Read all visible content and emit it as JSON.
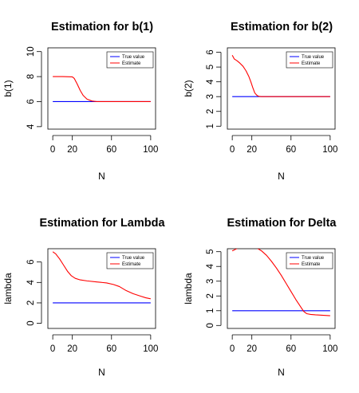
{
  "colors": {
    "true_value": "#0000ff",
    "estimate": "#ff0000"
  },
  "chart_data": [
    {
      "type": "line",
      "title": "Estimation for b(1)",
      "xlabel": "N",
      "ylabel": "b(1)",
      "xlim": [
        -5,
        105
      ],
      "ylim": [
        3.8,
        10.3
      ],
      "xticks": [
        0,
        20,
        60,
        100
      ],
      "yticks": [
        4,
        6,
        8,
        10
      ],
      "legend": {
        "position": "top-right",
        "entries": [
          "True value",
          "Estimate"
        ]
      },
      "series": [
        {
          "name": "True value",
          "color": "#0000ff",
          "x": [
            0,
            100
          ],
          "y": [
            6,
            6
          ]
        },
        {
          "name": "Estimate",
          "color": "#ff0000",
          "x": [
            0,
            10,
            20,
            22,
            25,
            28,
            31,
            35,
            40,
            45,
            50,
            60,
            70,
            80,
            90,
            100
          ],
          "y": [
            8,
            8,
            7.98,
            7.85,
            7.4,
            6.9,
            6.5,
            6.2,
            6.05,
            6.0,
            6.0,
            6.0,
            6.0,
            6.0,
            6.0,
            6.0
          ]
        }
      ]
    },
    {
      "type": "line",
      "title": "Estimation for b(2)",
      "xlabel": "N",
      "ylabel": "b(2)",
      "xlim": [
        -5,
        105
      ],
      "ylim": [
        0.8,
        6.3
      ],
      "xticks": [
        0,
        20,
        60,
        100
      ],
      "yticks": [
        1,
        2,
        3,
        4,
        5,
        6
      ],
      "legend": {
        "position": "top-right",
        "entries": [
          "True value",
          "Estimate"
        ]
      },
      "series": [
        {
          "name": "True value",
          "color": "#0000ff",
          "x": [
            0,
            100
          ],
          "y": [
            3,
            3
          ]
        },
        {
          "name": "Estimate",
          "color": "#ff0000",
          "x": [
            0,
            2,
            5,
            8,
            11,
            14,
            17,
            19,
            21,
            23,
            25,
            27,
            30,
            35,
            40,
            60,
            100
          ],
          "y": [
            5.8,
            5.55,
            5.42,
            5.25,
            5.05,
            4.75,
            4.35,
            4.0,
            3.6,
            3.25,
            3.1,
            3.02,
            3.0,
            3.0,
            3.0,
            3.0,
            3.0
          ]
        }
      ]
    },
    {
      "type": "line",
      "title": "Estimation for Lambda",
      "xlabel": "N",
      "ylabel": "lambda",
      "xlim": [
        -5,
        105
      ],
      "ylim": [
        -0.5,
        7.3
      ],
      "xticks": [
        0,
        20,
        60,
        100
      ],
      "yticks": [
        0,
        2,
        4,
        6
      ],
      "legend": {
        "position": "top-right",
        "entries": [
          "True value",
          "Estimate"
        ]
      },
      "series": [
        {
          "name": "True value",
          "color": "#0000ff",
          "x": [
            0,
            100
          ],
          "y": [
            2,
            2
          ]
        },
        {
          "name": "Estimate",
          "color": "#ff0000",
          "x": [
            0,
            3,
            7,
            11,
            15,
            19,
            23,
            28,
            35,
            45,
            55,
            62,
            68,
            75,
            82,
            90,
            95,
            100
          ],
          "y": [
            7.0,
            6.8,
            6.3,
            5.7,
            5.1,
            4.65,
            4.4,
            4.25,
            4.15,
            4.05,
            3.95,
            3.8,
            3.6,
            3.2,
            2.9,
            2.65,
            2.5,
            2.4
          ]
        }
      ]
    },
    {
      "type": "line",
      "title": "Estimation for Delta",
      "xlabel": "N",
      "ylabel": "lambda",
      "xlim": [
        -5,
        105
      ],
      "ylim": [
        -0.2,
        5.2
      ],
      "xticks": [
        0,
        20,
        60,
        100
      ],
      "yticks": [
        0,
        1,
        2,
        3,
        4,
        5
      ],
      "legend": {
        "position": "top-right",
        "entries": [
          "True value",
          "Estimate"
        ]
      },
      "series": [
        {
          "name": "True value",
          "color": "#0000ff",
          "x": [
            0,
            100
          ],
          "y": [
            1,
            1
          ]
        },
        {
          "name": "Estimate",
          "color": "#ff0000",
          "x": [
            0,
            3,
            6,
            10,
            15,
            20,
            25,
            30,
            35,
            40,
            45,
            50,
            55,
            60,
            65,
            70,
            73,
            76,
            80,
            85,
            90,
            95,
            100
          ],
          "y": [
            5.05,
            5.15,
            5.25,
            5.35,
            5.4,
            5.38,
            5.25,
            5.05,
            4.75,
            4.35,
            3.9,
            3.4,
            2.85,
            2.3,
            1.75,
            1.25,
            0.95,
            0.8,
            0.75,
            0.72,
            0.7,
            0.68,
            0.66
          ]
        }
      ]
    }
  ]
}
